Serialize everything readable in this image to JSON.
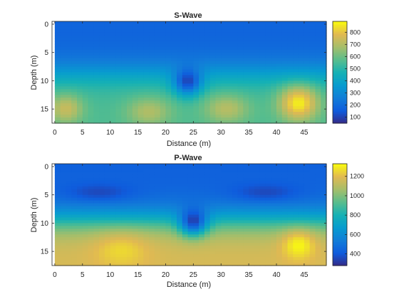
{
  "chart_data": [
    {
      "type": "heatmap",
      "title": "S-Wave",
      "xlabel": "Distance (m)",
      "ylabel": "Depth (m)",
      "xlim": [
        -0.5,
        49
      ],
      "ylim": [
        -0.5,
        17.5
      ],
      "y_reversed": true,
      "xticks": [
        0,
        5,
        10,
        15,
        20,
        25,
        30,
        35,
        40,
        45
      ],
      "yticks": [
        0,
        5,
        10,
        15
      ],
      "colorbar": {
        "min": 50,
        "max": 890,
        "ticks": [
          100,
          200,
          300,
          400,
          500,
          600,
          700,
          800
        ]
      },
      "colormap": "parula",
      "grid": false,
      "field": {
        "surface_value": 180,
        "base_value": 560,
        "transition_depth_m": 8.6,
        "transition_width_m": 1.6,
        "anomalies": [
          {
            "kind": "low",
            "center_x_m": 24,
            "center_depth_m": 10,
            "peak_value": 100,
            "radius_x_m": 2.5,
            "radius_depth_m": 2.5
          },
          {
            "kind": "high",
            "center_x_m": 44,
            "center_depth_m": 14,
            "peak_value": 870,
            "radius_x_m": 3.5,
            "radius_depth_m": 3
          },
          {
            "kind": "high",
            "center_x_m": 2,
            "center_depth_m": 15,
            "peak_value": 740,
            "radius_x_m": 3,
            "radius_depth_m": 2.5
          },
          {
            "kind": "high",
            "center_x_m": 17,
            "center_depth_m": 15.5,
            "peak_value": 700,
            "radius_x_m": 4,
            "radius_depth_m": 2.5
          },
          {
            "kind": "high",
            "center_x_m": 31,
            "center_depth_m": 15,
            "peak_value": 710,
            "radius_x_m": 4,
            "radius_depth_m": 2.5
          }
        ]
      }
    },
    {
      "type": "heatmap",
      "title": "P-Wave",
      "xlabel": "Distance (m)",
      "ylabel": "Depth (m)",
      "xlim": [
        -0.5,
        49
      ],
      "ylim": [
        -0.5,
        17.5
      ],
      "y_reversed": true,
      "xticks": [
        0,
        5,
        10,
        15,
        20,
        25,
        30,
        35,
        40,
        45
      ],
      "yticks": [
        0,
        5,
        10,
        15
      ],
      "colorbar": {
        "min": 280,
        "max": 1330,
        "ticks": [
          400,
          600,
          800,
          1000,
          1200
        ]
      },
      "colormap": "parula",
      "grid": false,
      "field": {
        "surface_value": 430,
        "base_value": 1180,
        "transition_depth_m": 9.5,
        "transition_width_m": 1.6,
        "anomalies": [
          {
            "kind": "low",
            "center_x_m": 25,
            "center_depth_m": 9.5,
            "peak_value": 330,
            "radius_x_m": 2.5,
            "radius_depth_m": 2.5
          },
          {
            "kind": "low",
            "center_x_m": 8,
            "center_depth_m": 4.5,
            "peak_value": 360,
            "radius_x_m": 6,
            "radius_depth_m": 1.5
          },
          {
            "kind": "low",
            "center_x_m": 38,
            "center_depth_m": 4.5,
            "peak_value": 360,
            "radius_x_m": 6,
            "radius_depth_m": 1.5
          },
          {
            "kind": "high",
            "center_x_m": 44,
            "center_depth_m": 14,
            "peak_value": 1320,
            "radius_x_m": 3,
            "radius_depth_m": 2.5
          },
          {
            "kind": "high",
            "center_x_m": 12,
            "center_depth_m": 15,
            "peak_value": 1260,
            "radius_x_m": 5,
            "radius_depth_m": 3
          }
        ]
      }
    }
  ],
  "plots": [
    {
      "id": "s",
      "title": "S-Wave",
      "xlabel": "Distance (m)",
      "ylabel": "Depth (m)"
    },
    {
      "id": "p",
      "title": "P-Wave",
      "xlabel": "Distance (m)",
      "ylabel": "Depth (m)"
    }
  ]
}
